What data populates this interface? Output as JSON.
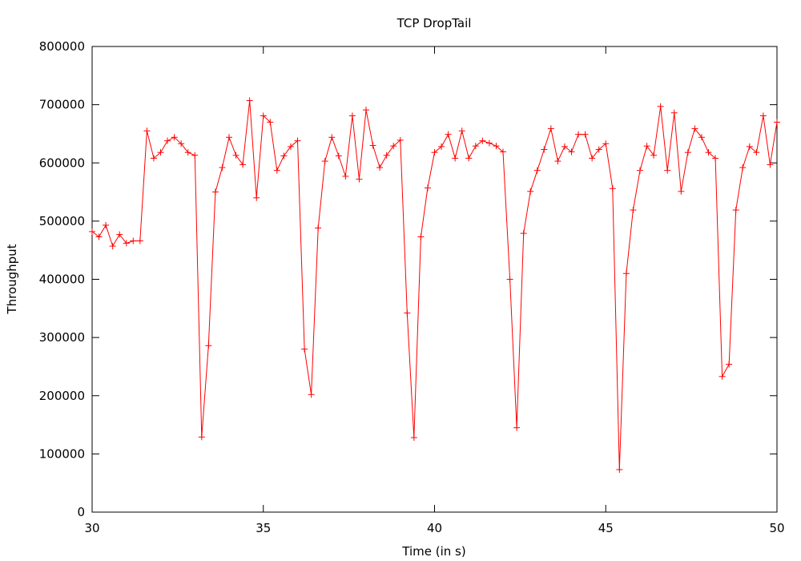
{
  "chart_data": {
    "type": "line",
    "title": "TCP DropTail",
    "xlabel": "Time (in s)",
    "ylabel": "Throughput",
    "xlim": [
      30,
      50
    ],
    "ylim": [
      0,
      800000
    ],
    "xticks": [
      30,
      35,
      40,
      45,
      50
    ],
    "yticks": [
      0,
      100000,
      200000,
      300000,
      400000,
      500000,
      600000,
      700000,
      800000
    ],
    "grid": false,
    "legend": "none",
    "marker": "plus",
    "series": [
      {
        "color": "#ff0000",
        "x": [
          30.0,
          30.2,
          30.4,
          30.6,
          30.8,
          31.0,
          31.2,
          31.4,
          31.6,
          31.8,
          32.0,
          32.2,
          32.4,
          32.6,
          32.8,
          33.0,
          33.2,
          33.4,
          33.6,
          33.8,
          34.0,
          34.2,
          34.4,
          34.6,
          34.8,
          35.0,
          35.2,
          35.4,
          35.6,
          35.8,
          36.0,
          36.2,
          36.4,
          36.6,
          36.8,
          37.0,
          37.2,
          37.4,
          37.6,
          37.8,
          38.0,
          38.2,
          38.4,
          38.6,
          38.8,
          39.0,
          39.2,
          39.4,
          39.6,
          39.8,
          40.0,
          40.2,
          40.4,
          40.6,
          40.8,
          41.0,
          41.2,
          41.4,
          41.6,
          41.8,
          42.0,
          42.2,
          42.4,
          42.6,
          42.8,
          43.0,
          43.2,
          43.4,
          43.6,
          43.8,
          44.0,
          44.2,
          44.4,
          44.6,
          44.8,
          45.0,
          45.2,
          45.4,
          45.6,
          45.8,
          46.0,
          46.2,
          46.4,
          46.6,
          46.8,
          47.0,
          47.2,
          47.4,
          47.6,
          47.8,
          48.0,
          48.2,
          48.4,
          48.6,
          48.8,
          49.0,
          49.2,
          49.4,
          49.6,
          49.8,
          50.0
        ],
        "y": [
          482000,
          473000,
          493000,
          457000,
          477000,
          462000,
          466000,
          466000,
          655000,
          608000,
          618000,
          638000,
          644000,
          633000,
          618000,
          613000,
          129000,
          286000,
          550000,
          592000,
          644000,
          613000,
          597000,
          707000,
          540000,
          681000,
          670000,
          587000,
          612000,
          628000,
          638000,
          280000,
          202000,
          488000,
          603000,
          644000,
          612000,
          577000,
          681000,
          572000,
          691000,
          630000,
          592000,
          613000,
          629000,
          639000,
          342000,
          128000,
          473000,
          557000,
          618000,
          628000,
          649000,
          608000,
          655000,
          608000,
          629000,
          638000,
          634000,
          629000,
          619000,
          400000,
          145000,
          479000,
          551000,
          587000,
          623000,
          659000,
          603000,
          628000,
          619000,
          649000,
          649000,
          608000,
          623000,
          633000,
          556000,
          73000,
          410000,
          519000,
          587000,
          629000,
          613000,
          697000,
          587000,
          686000,
          551000,
          618000,
          659000,
          644000,
          618000,
          608000,
          233000,
          254000,
          519000,
          592000,
          628000,
          618000,
          681000,
          597000,
          670000
        ]
      }
    ]
  }
}
